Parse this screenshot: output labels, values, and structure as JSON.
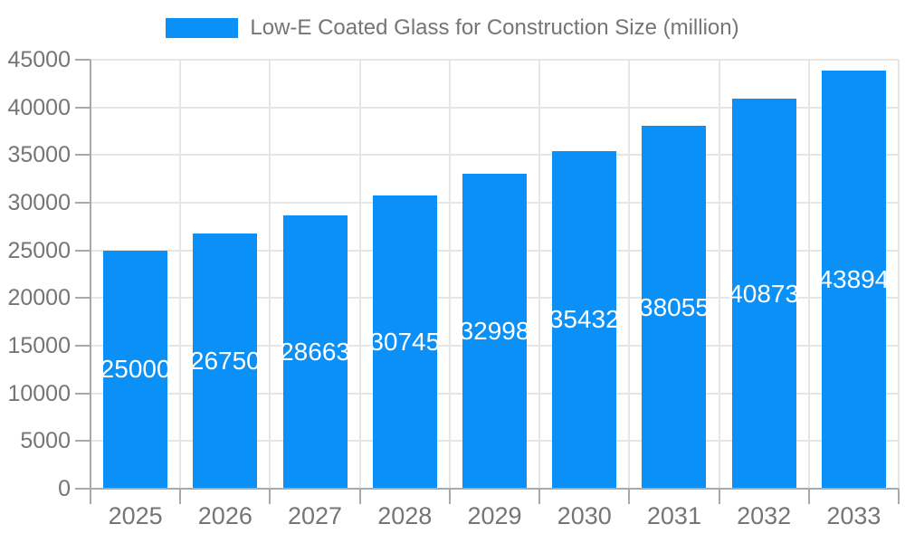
{
  "colors": {
    "background": "#ffffff",
    "bar": "#0a90f7",
    "axis": "#a9a9a9",
    "grid": "#e6e6e6",
    "text": "#757575",
    "value_label": "#ffffff"
  },
  "chart_data": {
    "type": "bar",
    "title": "Low-E Coated Glass for Construction Size (million)",
    "series_name": "Low-E Coated Glass for Construction Size (million)",
    "categories": [
      "2025",
      "2026",
      "2027",
      "2028",
      "2029",
      "2030",
      "2031",
      "2032",
      "2033"
    ],
    "values": [
      25000,
      26750,
      28663,
      30745,
      32998,
      35432,
      38055,
      40873,
      43894
    ],
    "value_labels": [
      "25000",
      "26750",
      "28663",
      "30745",
      "32998",
      "35432",
      "38055",
      "40873",
      "43894"
    ],
    "ytick_labels": [
      "0",
      "5000",
      "10000",
      "15000",
      "20000",
      "25000",
      "30000",
      "35000",
      "40000",
      "45000"
    ],
    "xlabel": "",
    "ylabel": "",
    "ylim": [
      0,
      45000
    ],
    "ytick_step": 5000,
    "grid": true,
    "legend_position": "top",
    "value_label_position": "inside-center"
  }
}
